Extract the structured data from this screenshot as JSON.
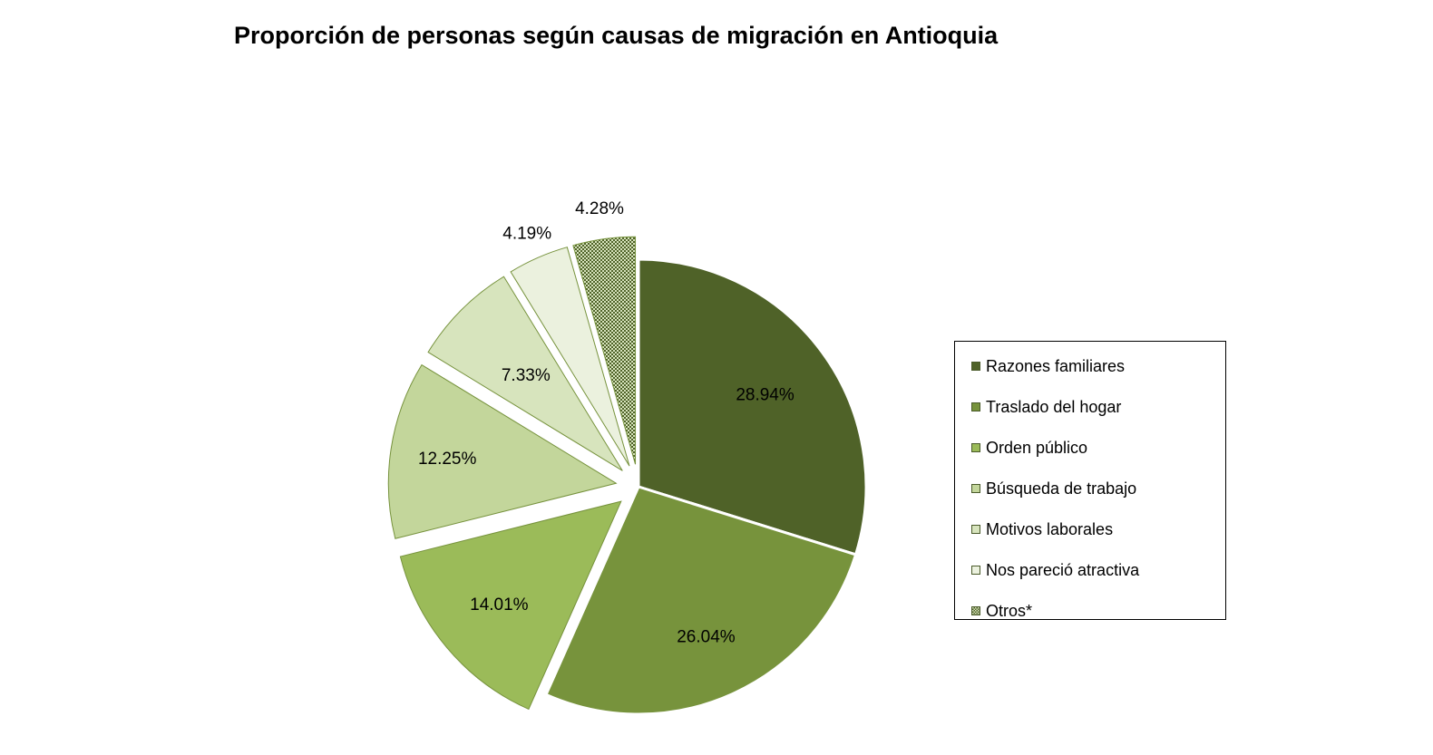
{
  "chart_data": {
    "type": "pie",
    "title": "Proporción de personas según causas de migración en Antioquia",
    "categories": [
      "Razones familiares",
      "Traslado del hogar",
      "Orden público",
      "Búsqueda de trabajo",
      "Motivos laborales",
      "Nos pareció atractiva",
      "Otros*"
    ],
    "values": [
      28.94,
      26.04,
      14.01,
      12.25,
      7.33,
      4.19,
      4.28
    ],
    "labels": [
      "28.94%",
      "26.04%",
      "14.01%",
      "12.25%",
      "7.33%",
      "4.19%",
      "4.28%"
    ],
    "colors": [
      "#4f6228",
      "#77933c",
      "#9bbb59",
      "#c3d69b",
      "#d7e4bd",
      "#ebf1de",
      "#4f6228"
    ],
    "patterns": [
      "solid",
      "solid",
      "solid",
      "solid",
      "solid",
      "solid",
      "dotted"
    ],
    "legend_position": "right"
  }
}
